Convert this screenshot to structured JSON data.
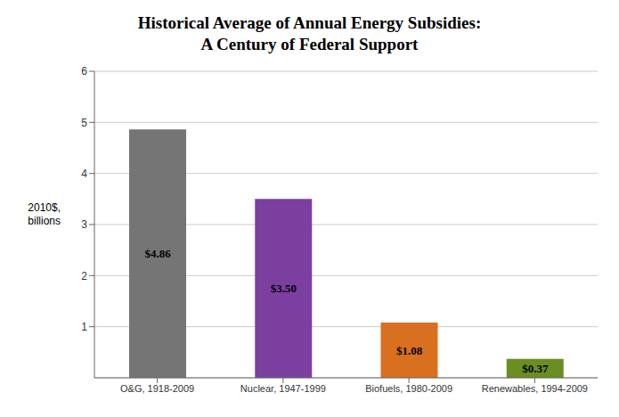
{
  "chart_data": {
    "type": "bar",
    "title": "Historical Average of Annual Energy Subsidies:",
    "subtitle": "A Century of Federal Support",
    "ylabel": "2010$,\nbillions",
    "categories": [
      "O&G, 1918-2009",
      "Nuclear, 1947-1999",
      "Biofuels, 1980-2009",
      "Renewables, 1994-2009"
    ],
    "values": [
      4.86,
      3.5,
      1.08,
      0.37
    ],
    "value_labels": [
      "$4.86",
      "$3.50",
      "$1.08",
      "$0.37"
    ],
    "data_labels": true,
    "colors": [
      "#757575",
      "#7B3FA0",
      "#D97020",
      "#6B8E23"
    ],
    "ylim": [
      0,
      6
    ],
    "yticks": [
      1,
      2,
      3,
      4,
      5,
      6
    ],
    "grid": true
  }
}
